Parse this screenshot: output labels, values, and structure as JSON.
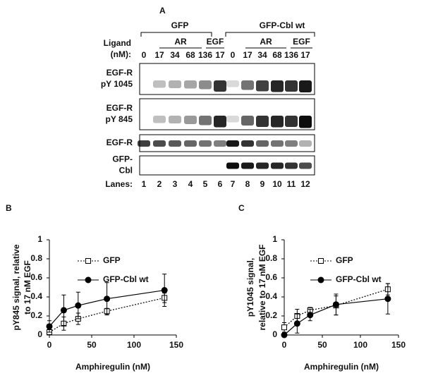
{
  "panel_a": {
    "letter": "A",
    "groups": [
      "GFP",
      "GFP-Cbl wt"
    ],
    "ligand_label": [
      "Ligand",
      "(nM):"
    ],
    "sub_labels": [
      "AR",
      "EGF",
      "AR",
      "EGF"
    ],
    "concentrations": [
      "0",
      "17",
      "34",
      "68",
      "136",
      "17",
      "0",
      "17",
      "34",
      "68",
      "136",
      "17"
    ],
    "rows": [
      [
        "EGF-R",
        "pY 1045"
      ],
      [
        "EGF-R",
        "pY 845"
      ],
      [
        "EGF-R"
      ],
      [
        "GFP-",
        "Cbl"
      ]
    ],
    "lanes_label": "Lanes:",
    "lanes": [
      "1",
      "2",
      "3",
      "4",
      "5",
      "6",
      "7",
      "8",
      "9",
      "10",
      "11",
      "12"
    ]
  },
  "chart_data": [
    {
      "type": "line",
      "letter": "B",
      "xlabel": "Amphiregulin (nM)",
      "ylabel": [
        "pY845 signal, relative",
        "to 17 nM EGF"
      ],
      "x": [
        0,
        17,
        34,
        68,
        136
      ],
      "xlim": [
        0,
        150
      ],
      "xticks": [
        0,
        50,
        100,
        150
      ],
      "ylim": [
        0,
        1
      ],
      "yticks": [
        0,
        0.2,
        0.4,
        0.6,
        0.8,
        1
      ],
      "series": [
        {
          "name": "GFP",
          "color": "#000000",
          "dash": true,
          "marker": "square-open",
          "values": [
            0.03,
            0.12,
            0.17,
            0.25,
            0.39
          ],
          "errors": [
            0.03,
            0.07,
            0.06,
            0.03,
            0.05
          ]
        },
        {
          "name": "GFP-Cbl wt",
          "color": "#000000",
          "dash": false,
          "marker": "circle-filled",
          "values": [
            0.09,
            0.26,
            0.31,
            0.38,
            0.47
          ],
          "errors": [
            0.06,
            0.16,
            0.14,
            0.17,
            0.17
          ]
        }
      ]
    },
    {
      "type": "line",
      "letter": "C",
      "xlabel": "Amphiregulin (nM)",
      "ylabel": [
        "pY1045 signal,",
        "relative to 17 nM EGF"
      ],
      "x": [
        0,
        17,
        34,
        68,
        136
      ],
      "xlim": [
        0,
        150
      ],
      "xticks": [
        0,
        50,
        100,
        150
      ],
      "ylim": [
        0,
        1
      ],
      "yticks": [
        0,
        0.2,
        0.4,
        0.6,
        0.8,
        1
      ],
      "series": [
        {
          "name": "GFP",
          "color": "#000000",
          "dash": true,
          "marker": "square-open",
          "values": [
            0.08,
            0.2,
            0.26,
            0.31,
            0.48
          ],
          "errors": [
            0.05,
            0.07,
            0.03,
            0.1,
            0.06
          ]
        },
        {
          "name": "GFP-Cbl wt",
          "color": "#000000",
          "dash": false,
          "marker": "circle-filled",
          "values": [
            0,
            0.12,
            0.21,
            0.32,
            0.38
          ],
          "errors": [
            0,
            0.1,
            0.06,
            0.11,
            0.16
          ]
        }
      ]
    }
  ]
}
